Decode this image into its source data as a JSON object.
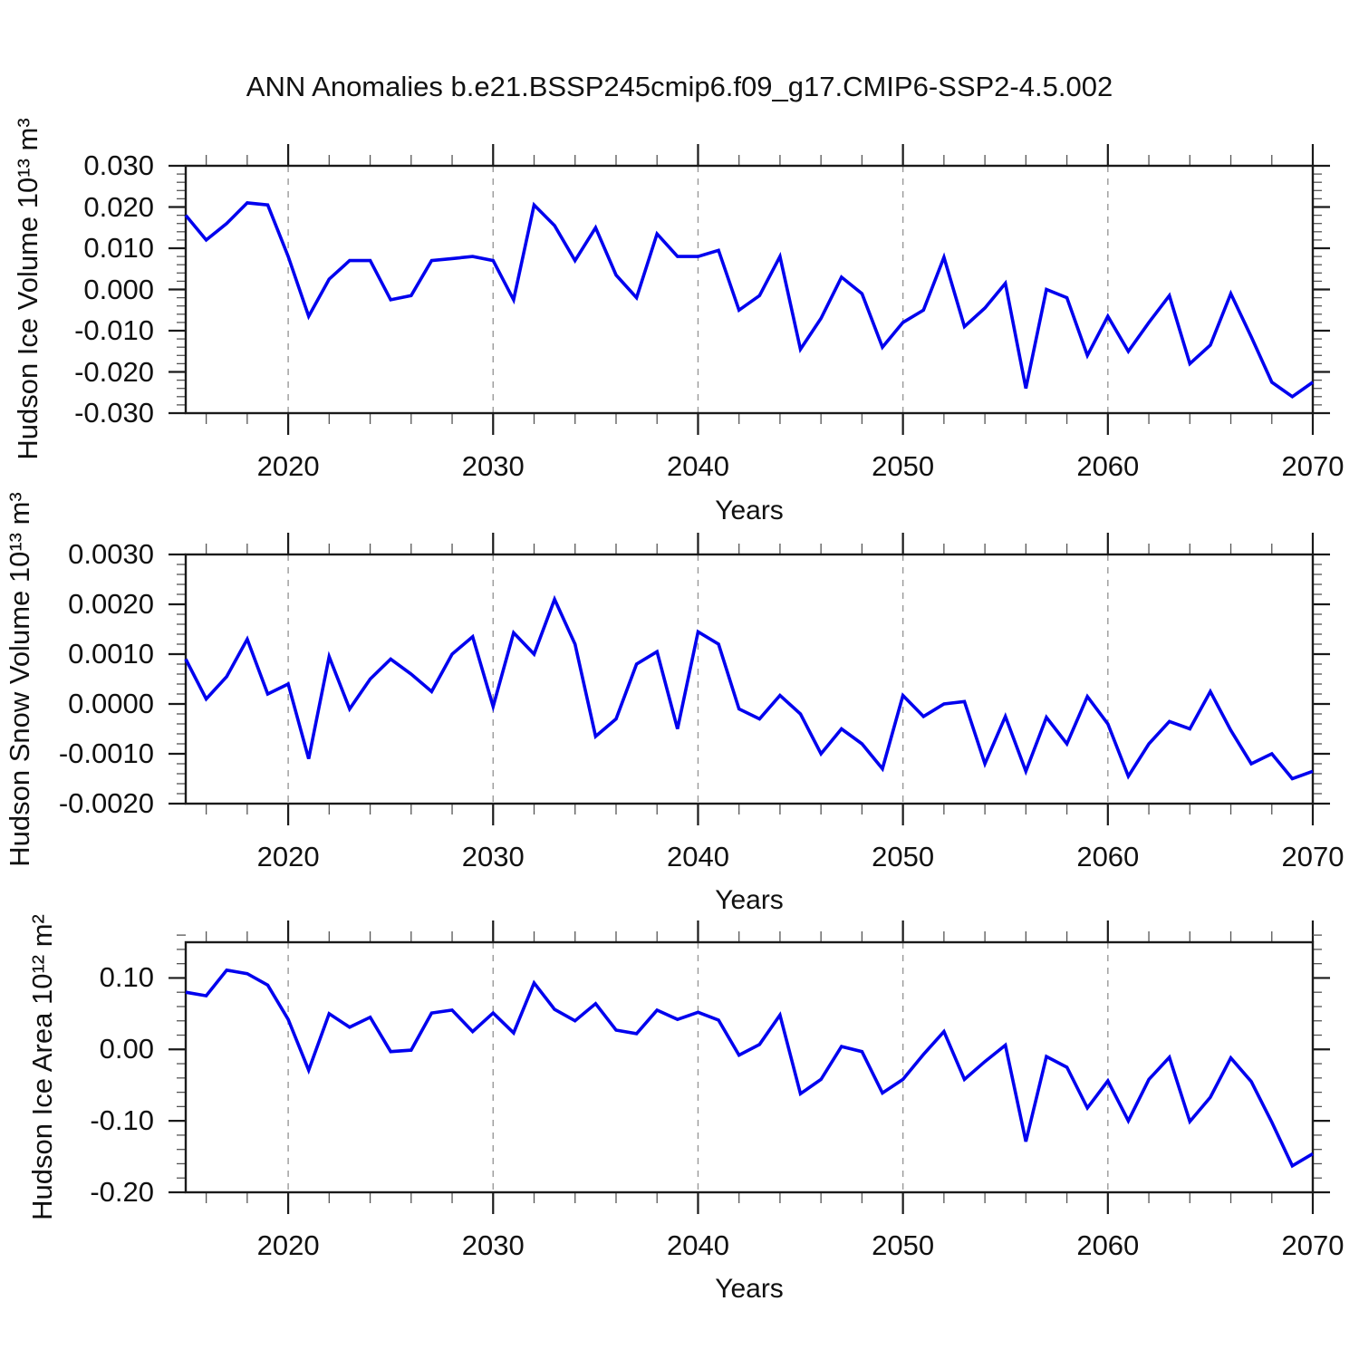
{
  "title": "ANN Anomalies b.e21.BSSP245cmip6.f09_g17.CMIP6-SSP2-4.5.002",
  "line_color": "#0000ee",
  "gridline_color": "#999999",
  "axis_color": "#1a1a1a",
  "minor_tick_color": "#555555",
  "years": [
    2015,
    2016,
    2017,
    2018,
    2019,
    2020,
    2021,
    2022,
    2023,
    2024,
    2025,
    2026,
    2027,
    2028,
    2029,
    2030,
    2031,
    2032,
    2033,
    2034,
    2035,
    2036,
    2037,
    2038,
    2039,
    2040,
    2041,
    2042,
    2043,
    2044,
    2045,
    2046,
    2047,
    2048,
    2049,
    2050,
    2051,
    2052,
    2053,
    2054,
    2055,
    2056,
    2057,
    2058,
    2059,
    2060,
    2061,
    2062,
    2063,
    2064,
    2065,
    2066,
    2067,
    2068,
    2069,
    2070
  ],
  "chart_data": [
    {
      "type": "line",
      "ylabel": "Hudson Ice Volume 10¹³ m³",
      "xlabel": "Years",
      "ylim": [
        -0.03,
        0.03
      ],
      "ytick_values": [
        0.03,
        0.02,
        0.01,
        0.0,
        -0.01,
        -0.02,
        -0.03
      ],
      "ytick_labels": [
        "0.030",
        "0.020",
        "0.010",
        "0.000",
        "-0.010",
        "-0.020",
        "-0.030"
      ],
      "y_minor_step": 0.002,
      "xlim": [
        2015,
        2070
      ],
      "xtick_values": [
        2020,
        2030,
        2040,
        2050,
        2060,
        2070
      ],
      "xtick_labels": [
        "2020",
        "2030",
        "2040",
        "2050",
        "2060",
        "2070"
      ],
      "x_minor_step": 2,
      "gridlines_at": [
        2020,
        2030,
        2040,
        2050,
        2060
      ],
      "legend": "none",
      "series": [
        {
          "name": "Hudson Ice Volume 10¹³ m³",
          "values": [
            0.018,
            0.012,
            0.016,
            0.021,
            0.0205,
            0.008,
            -0.0065,
            0.0025,
            0.007,
            0.007,
            -0.0025,
            -0.0015,
            0.007,
            0.0075,
            0.008,
            0.007,
            -0.0025,
            0.0205,
            0.0155,
            0.007,
            0.015,
            0.0035,
            -0.002,
            0.0135,
            0.008,
            0.008,
            0.0095,
            -0.005,
            -0.0015,
            0.008,
            -0.0145,
            -0.007,
            0.003,
            -0.001,
            -0.014,
            -0.008,
            -0.005,
            0.0078,
            -0.009,
            -0.0045,
            0.0015,
            -0.024,
            0.0,
            -0.002,
            -0.016,
            -0.0065,
            -0.015,
            -0.008,
            -0.0015,
            -0.018,
            -0.0135,
            -0.001,
            -0.0115,
            -0.0225,
            -0.026,
            -0.0225
          ]
        }
      ]
    },
    {
      "type": "line",
      "ylabel": "Hudson Snow Volume 10¹³ m³",
      "xlabel": "Years",
      "ylim": [
        -0.002,
        0.003
      ],
      "ytick_values": [
        0.003,
        0.002,
        0.001,
        0.0,
        -0.001,
        -0.002
      ],
      "ytick_labels": [
        "0.0030",
        "0.0020",
        "0.0010",
        "0.0000",
        "-0.0010",
        "-0.0020"
      ],
      "y_minor_step": 0.0002,
      "xlim": [
        2015,
        2070
      ],
      "xtick_values": [
        2020,
        2030,
        2040,
        2050,
        2060,
        2070
      ],
      "xtick_labels": [
        "2020",
        "2030",
        "2040",
        "2050",
        "2060",
        "2070"
      ],
      "x_minor_step": 2,
      "gridlines_at": [
        2020,
        2030,
        2040,
        2050,
        2060
      ],
      "legend": "none",
      "series": [
        {
          "name": "Hudson Snow Volume 10¹³ m³",
          "values": [
            0.0009,
            0.0001,
            0.00055,
            0.0013,
            0.0002,
            0.0004,
            -0.0011,
            0.00095,
            -0.0001,
            0.0005,
            0.0009,
            0.0006,
            0.00025,
            0.001,
            0.00135,
            -5e-05,
            0.00143,
            0.001,
            0.0021,
            0.0012,
            -0.00065,
            -0.0003,
            0.0008,
            0.00105,
            -0.0005,
            0.00145,
            0.0012,
            -0.0001,
            -0.0003,
            0.00017,
            -0.0002,
            -0.001,
            -0.0005,
            -0.0008,
            -0.0013,
            0.00017,
            -0.00025,
            0.0,
            5e-05,
            -0.0012,
            -0.00025,
            -0.00135,
            -0.00027,
            -0.0008,
            0.00015,
            -0.0004,
            -0.00145,
            -0.0008,
            -0.00035,
            -0.0005,
            0.00025,
            -0.00053,
            -0.0012,
            -0.001,
            -0.0015,
            -0.00135
          ]
        }
      ]
    },
    {
      "type": "line",
      "ylabel": "Hudson Ice Area 10¹² m²",
      "xlabel": "Years",
      "ylim": [
        -0.2,
        0.15
      ],
      "ytick_values": [
        0.1,
        0.0,
        -0.1,
        -0.2
      ],
      "ytick_labels": [
        "0.10",
        "0.00",
        "-0.10",
        "-0.20"
      ],
      "y_minor_step": 0.02,
      "xlim": [
        2015,
        2070
      ],
      "xtick_values": [
        2020,
        2030,
        2040,
        2050,
        2060,
        2070
      ],
      "xtick_labels": [
        "2020",
        "2030",
        "2040",
        "2050",
        "2060",
        "2070"
      ],
      "x_minor_step": 2,
      "gridlines_at": [
        2020,
        2030,
        2040,
        2050,
        2060
      ],
      "legend": "none",
      "series": [
        {
          "name": "Hudson Ice Area 10¹² m²",
          "values": [
            0.08,
            0.075,
            0.111,
            0.106,
            0.09,
            0.042,
            -0.029,
            0.05,
            0.031,
            0.045,
            -0.003,
            -0.001,
            0.051,
            0.055,
            0.025,
            0.051,
            0.023,
            0.093,
            0.056,
            0.04,
            0.064,
            0.027,
            0.022,
            0.055,
            0.042,
            0.052,
            0.041,
            -0.008,
            0.007,
            0.048,
            -0.062,
            -0.042,
            0.004,
            -0.003,
            -0.061,
            -0.042,
            -0.007,
            0.025,
            -0.042,
            -0.017,
            0.006,
            -0.129,
            -0.01,
            -0.025,
            -0.082,
            -0.044,
            -0.1,
            -0.042,
            -0.011,
            -0.101,
            -0.067,
            -0.012,
            -0.045,
            -0.102,
            -0.163,
            -0.146
          ]
        }
      ]
    }
  ]
}
